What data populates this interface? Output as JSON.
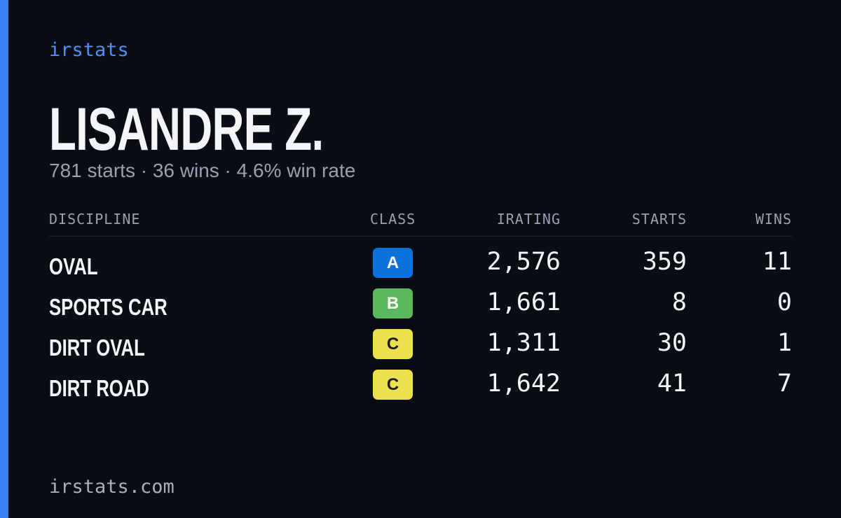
{
  "header": {
    "brand": "irstats",
    "name": "LISANDRE Z.",
    "summary": "781 starts · 36 wins · 4.6% win rate"
  },
  "table": {
    "columns": [
      "DISCIPLINE",
      "CLASS",
      "IRATING",
      "STARTS",
      "WINS"
    ],
    "rows": [
      {
        "discipline": "OVAL",
        "class": "A",
        "class_color": "#0b72dc",
        "class_text_color": "#ffffff",
        "irating": "2,576",
        "starts": 359,
        "wins": 11
      },
      {
        "discipline": "SPORTS CAR",
        "class": "B",
        "class_color": "#5cb85c",
        "class_text_color": "#ffffff",
        "irating": "1,661",
        "starts": 8,
        "wins": 0
      },
      {
        "discipline": "DIRT OVAL",
        "class": "C",
        "class_color": "#ebe14e",
        "class_text_color": "#1a1a1a",
        "irating": "1,311",
        "starts": 30,
        "wins": 1
      },
      {
        "discipline": "DIRT ROAD",
        "class": "C",
        "class_color": "#ebe14e",
        "class_text_color": "#1a1a1a",
        "irating": "1,642",
        "starts": 41,
        "wins": 7
      }
    ]
  },
  "footer": {
    "url": "irstats.com"
  }
}
